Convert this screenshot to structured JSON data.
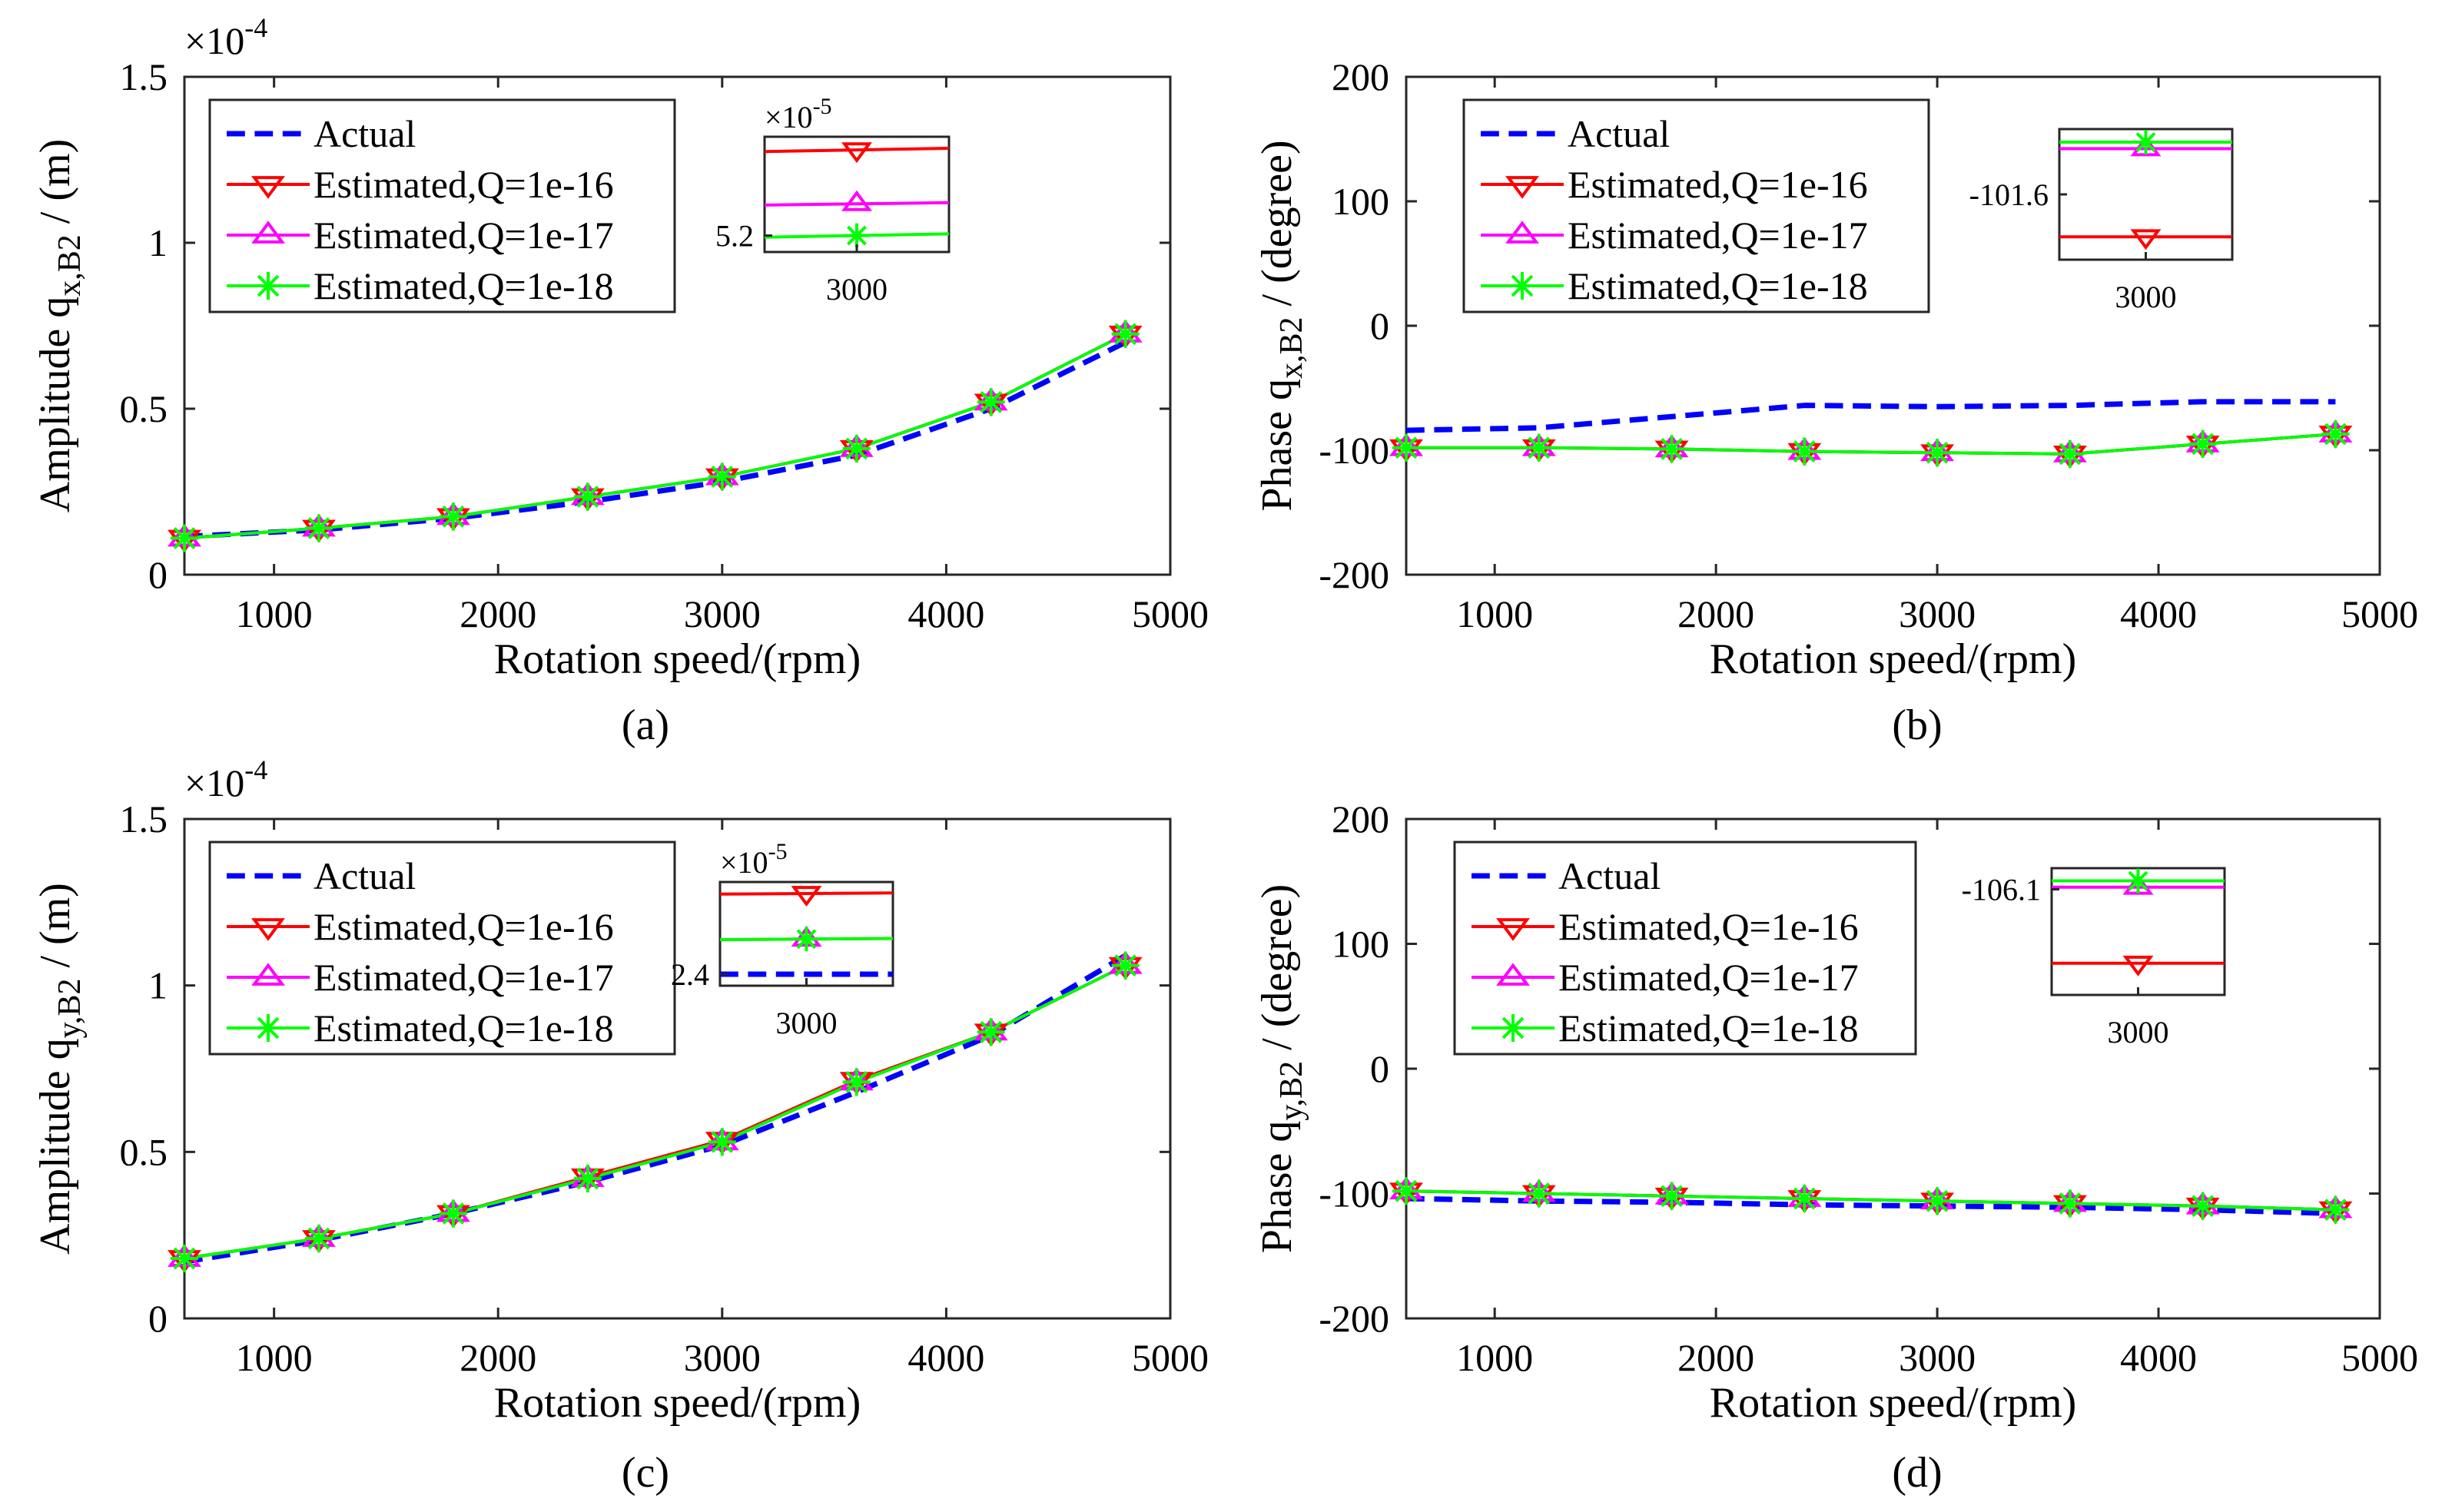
{
  "colors": {
    "actual": "#0000ff",
    "q16": "#ff0000",
    "q17": "#ff00ff",
    "q18": "#00ff00"
  },
  "legend": {
    "actual": "Actual",
    "q16": "Estimated,Q=1e-16",
    "q17": "Estimated,Q=1e-17",
    "q18": "Estimated,Q=1e-18"
  },
  "chart_data": [
    {
      "id": "a",
      "type": "line",
      "sublabel": "(a)",
      "xlabel": "Rotation speed/(rpm)",
      "ylabel_pre": "Amplitude  q",
      "ylabel_sub": "x,B2",
      "ylabel_post": " / (m)",
      "xlim": [
        600,
        5000
      ],
      "ylim": [
        0,
        1.5
      ],
      "xticks": [
        1000,
        2000,
        3000,
        4000,
        5000
      ],
      "yticks": [
        0,
        0.5,
        1,
        1.5
      ],
      "ytick_labels": [
        "0",
        "0.5",
        "1",
        "1.5"
      ],
      "exponent_base": "×10",
      "exponent_power": "-4",
      "x": [
        600,
        1200,
        1800,
        2400,
        3000,
        3600,
        4200,
        4800
      ],
      "series": [
        {
          "key": "actual",
          "values": [
            0.115,
            0.135,
            0.17,
            0.22,
            0.28,
            0.36,
            0.5,
            0.7
          ]
        },
        {
          "key": "q16",
          "values": [
            0.11,
            0.14,
            0.175,
            0.235,
            0.295,
            0.38,
            0.52,
            0.725
          ]
        },
        {
          "key": "q17",
          "values": [
            0.11,
            0.14,
            0.175,
            0.235,
            0.295,
            0.38,
            0.52,
            0.725
          ]
        },
        {
          "key": "q18",
          "values": [
            0.11,
            0.14,
            0.175,
            0.235,
            0.295,
            0.38,
            0.52,
            0.725
          ]
        }
      ],
      "inset": {
        "exponent_base": "×10",
        "exponent_power": "-5",
        "xtick": "3000",
        "ytick": "5.2",
        "xlim": [
          2900,
          3100
        ],
        "ylim": [
          5.18,
          5.32
        ],
        "series": [
          {
            "key": "q16",
            "values": [
              5.302,
              5.306
            ],
            "marker_y": 5.304
          },
          {
            "key": "q17",
            "values": [
              5.237,
              5.24
            ],
            "marker_y": 5.239
          },
          {
            "key": "q18",
            "values": [
              5.198,
              5.202
            ],
            "marker_y": 5.2
          }
        ]
      }
    },
    {
      "id": "b",
      "type": "line",
      "sublabel": "(b)",
      "xlabel": "Rotation speed/(rpm)",
      "ylabel_pre": "Phase  q",
      "ylabel_sub": "x,B2",
      "ylabel_post": " / (degree)",
      "xlim": [
        600,
        5000
      ],
      "ylim": [
        -200,
        200
      ],
      "xticks": [
        1000,
        2000,
        3000,
        4000,
        5000
      ],
      "yticks": [
        -200,
        -100,
        0,
        100,
        200
      ],
      "ytick_labels": [
        "-200",
        "-100",
        "0",
        "100",
        "200"
      ],
      "x": [
        600,
        1200,
        1800,
        2400,
        3000,
        3600,
        4200,
        4800
      ],
      "series": [
        {
          "key": "actual",
          "values": [
            -84,
            -82,
            -73,
            -64,
            -65,
            -64,
            -61,
            -61
          ]
        },
        {
          "key": "q16",
          "values": [
            -98,
            -98,
            -99,
            -101,
            -102,
            -103,
            -95,
            -87
          ]
        },
        {
          "key": "q17",
          "values": [
            -98,
            -98,
            -99,
            -101,
            -102,
            -103,
            -95,
            -87
          ]
        },
        {
          "key": "q18",
          "values": [
            -98,
            -98,
            -99,
            -101,
            -102,
            -103,
            -95,
            -87
          ]
        }
      ],
      "inset": {
        "xtick": "3000",
        "ytick": "-101.6",
        "xlim": [
          2900,
          3100
        ],
        "ylim": [
          -101.64,
          -101.56
        ],
        "series": [
          {
            "key": "q16",
            "values": [
              -101.626,
              -101.626
            ],
            "marker_y": -101.626
          },
          {
            "key": "q17",
            "values": [
              -101.572,
              -101.572
            ],
            "marker_y": -101.572
          },
          {
            "key": "q18",
            "values": [
              -101.568,
              -101.568
            ],
            "marker_y": -101.568
          }
        ]
      }
    },
    {
      "id": "c",
      "type": "line",
      "sublabel": "(c)",
      "xlabel": "Rotation speed/(rpm)",
      "ylabel_pre": "Amplitude  q",
      "ylabel_sub": "y,B2",
      "ylabel_post": " / (m)",
      "xlim": [
        600,
        5000
      ],
      "ylim": [
        0,
        1.5
      ],
      "xticks": [
        1000,
        2000,
        3000,
        4000,
        5000
      ],
      "yticks": [
        0,
        0.5,
        1,
        1.5
      ],
      "ytick_labels": [
        "0",
        "0.5",
        "1",
        "1.5"
      ],
      "exponent_base": "×10",
      "exponent_power": "-4",
      "x": [
        600,
        1200,
        1800,
        2400,
        3000,
        3600,
        4200,
        4800
      ],
      "series": [
        {
          "key": "actual",
          "values": [
            0.17,
            0.235,
            0.315,
            0.41,
            0.52,
            0.68,
            0.85,
            1.09
          ]
        },
        {
          "key": "q16",
          "values": [
            0.18,
            0.24,
            0.315,
            0.425,
            0.535,
            0.715,
            0.86,
            1.06
          ]
        },
        {
          "key": "q17",
          "values": [
            0.18,
            0.24,
            0.315,
            0.42,
            0.53,
            0.71,
            0.86,
            1.06
          ]
        },
        {
          "key": "q18",
          "values": [
            0.18,
            0.24,
            0.315,
            0.42,
            0.53,
            0.71,
            0.86,
            1.06
          ]
        }
      ],
      "inset": {
        "exponent_base": "×10",
        "exponent_power": "-5",
        "xtick": "3000",
        "ytick": "2.4",
        "xlim": [
          2900,
          3100
        ],
        "ylim": [
          2.38,
          2.56
        ],
        "series": [
          {
            "key": "actual",
            "values": [
              2.4,
              2.4
            ],
            "marker_y": null
          },
          {
            "key": "q16",
            "values": [
              2.539,
              2.541
            ],
            "marker_y": 2.54
          },
          {
            "key": "q17",
            "values": [
              2.46,
              2.462
            ],
            "marker_y": 2.461
          },
          {
            "key": "q18",
            "values": [
              2.46,
              2.462
            ],
            "marker_y": 2.461
          }
        ]
      }
    },
    {
      "id": "d",
      "type": "line",
      "sublabel": "(d)",
      "xlabel": "Rotation speed/(rpm)",
      "ylabel_pre": "Phase  q",
      "ylabel_sub": "y,B2",
      "ylabel_post": " / (degree)",
      "xlim": [
        600,
        5000
      ],
      "ylim": [
        -200,
        200
      ],
      "xticks": [
        1000,
        2000,
        3000,
        4000,
        5000
      ],
      "yticks": [
        -200,
        -100,
        0,
        100,
        200
      ],
      "ytick_labels": [
        "-200",
        "-100",
        "0",
        "100",
        "200"
      ],
      "x": [
        600,
        1200,
        1800,
        2400,
        3000,
        3600,
        4200,
        4800
      ],
      "series": [
        {
          "key": "actual",
          "values": [
            -104,
            -106,
            -107,
            -109,
            -110,
            -111,
            -113,
            -116
          ]
        },
        {
          "key": "q16",
          "values": [
            -98,
            -100,
            -102,
            -104,
            -106,
            -108,
            -110,
            -113
          ]
        },
        {
          "key": "q17",
          "values": [
            -98,
            -100,
            -102,
            -104,
            -106,
            -108,
            -110,
            -113
          ]
        },
        {
          "key": "q18",
          "values": [
            -98,
            -100,
            -102,
            -104,
            -106,
            -108,
            -110,
            -113
          ]
        }
      ],
      "inset": {
        "xtick": "3000",
        "ytick": "-106.1",
        "xlim": [
          2900,
          3100
        ],
        "ylim": [
          -106.2,
          -106.08
        ],
        "series": [
          {
            "key": "q16",
            "values": [
              -106.17,
              -106.17
            ],
            "marker_y": -106.17
          },
          {
            "key": "q17",
            "values": [
              -106.098,
              -106.098
            ],
            "marker_y": -106.098
          },
          {
            "key": "q18",
            "values": [
              -106.092,
              -106.092
            ],
            "marker_y": -106.092
          }
        ]
      }
    }
  ]
}
